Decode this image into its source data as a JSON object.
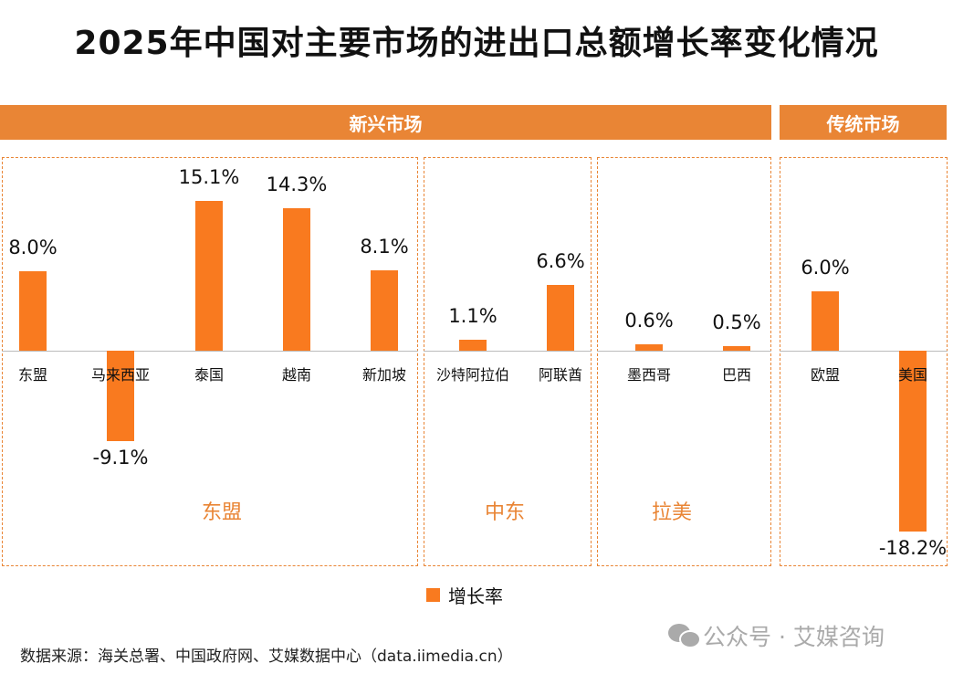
{
  "title": "2025年中国对主要市场的进出口总额增长率变化情况",
  "headers": {
    "emerging": "新兴市场",
    "traditional": "传统市场"
  },
  "groups": {
    "asean": "东盟",
    "middle_east": "中东",
    "latam": "拉美"
  },
  "legend": "增长率",
  "source": "数据来源：海关总署、中国政府网、艾媒数据中心（data.iimedia.cn）",
  "watermark": "公众号 · 艾媒咨询",
  "colors": {
    "bar": "#F97A1F",
    "header": "#E98535"
  },
  "chart_data": {
    "type": "bar",
    "categories": [
      "东盟",
      "马来西亚",
      "泰国",
      "越南",
      "新加坡",
      "沙特阿拉伯",
      "阿联酋",
      "墨西哥",
      "巴西",
      "欧盟",
      "美国"
    ],
    "series": [
      {
        "name": "增长率",
        "values": [
          8.0,
          -9.1,
          15.1,
          14.3,
          8.1,
          1.1,
          6.6,
          0.6,
          0.5,
          6.0,
          -18.2
        ]
      }
    ],
    "labels": [
      "8.0%",
      "-9.1%",
      "15.1%",
      "14.3%",
      "8.1%",
      "1.1%",
      "6.6%",
      "0.6%",
      "0.5%",
      "6.0%",
      "-18.2%"
    ],
    "unit": "%",
    "legend_position": "bottom"
  }
}
